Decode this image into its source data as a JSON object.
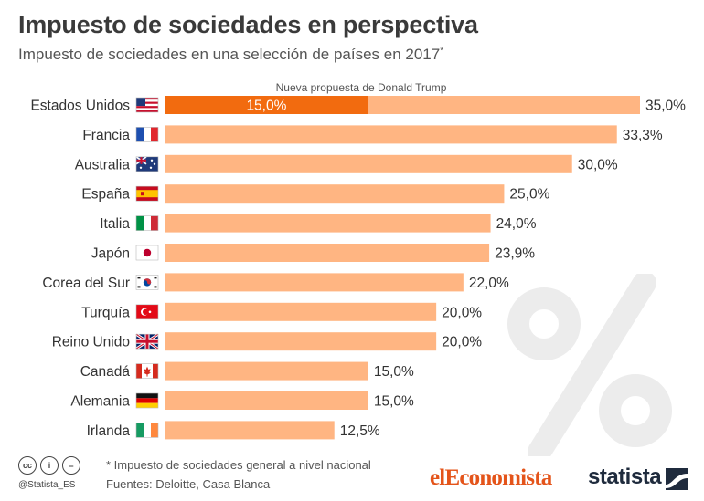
{
  "header": {
    "title": "Impuesto de sociedades en perspectiva",
    "subtitle": "Impuesto de sociedades en una selección de países en 2017",
    "subtitle_mark": "*"
  },
  "chart_data": {
    "type": "bar",
    "orientation": "horizontal",
    "categories": [
      "Estados Unidos",
      "Francia",
      "Australia",
      "España",
      "Italia",
      "Japón",
      "Corea del Sur",
      "Turquía",
      "Reino Unido",
      "Canadá",
      "Alemania",
      "Irlanda"
    ],
    "values": [
      35.0,
      33.3,
      30.0,
      25.0,
      24.0,
      23.9,
      22.0,
      20.0,
      20.0,
      15.0,
      15.0,
      12.5
    ],
    "value_labels": [
      "35,0%",
      "33,3%",
      "30,0%",
      "25,0%",
      "24,0%",
      "23,9%",
      "22,0%",
      "20,0%",
      "20,0%",
      "15,0%",
      "15,0%",
      "12,5%"
    ],
    "flags": [
      "us",
      "fr",
      "au",
      "es",
      "it",
      "jp",
      "kr",
      "tr",
      "gb",
      "ca",
      "de",
      "ie"
    ],
    "highlight": {
      "category": "Estados Unidos",
      "value": 15.0,
      "value_label": "15,0%",
      "annotation": "Nueva propuesta de Donald Trump",
      "color": "#f26b0f"
    },
    "bar_color": "#ffb582",
    "xlim": [
      0,
      35
    ],
    "grid": false,
    "legend": "none"
  },
  "footer": {
    "note": "* Impuesto de sociedades general a nivel nacional",
    "sources": "Fuentes: Deloitte, Casa Blanca",
    "handle": "@Statista_ES",
    "cc_icons": [
      "cc",
      "i",
      "="
    ],
    "brand_left": "elEconomista",
    "brand_right": "statista"
  },
  "decor": {
    "background_symbol": "%"
  }
}
